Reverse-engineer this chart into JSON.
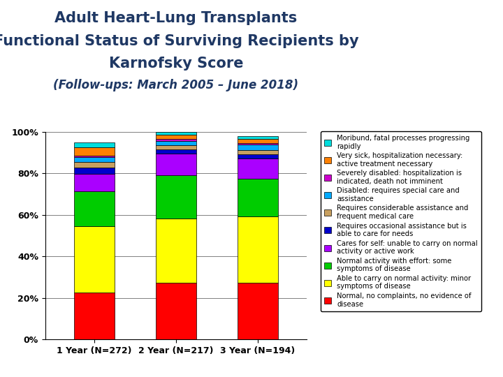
{
  "categories": [
    "1 Year (N=272)",
    "2 Year (N=217)",
    "3 Year (N=194)"
  ],
  "title_line1": "Adult Heart-Lung Transplants",
  "title_line2": "Functional Status of Surviving Recipients by",
  "title_line3": "Karnofsky Score",
  "subtitle": "(Follow-ups: March 2005 – June 2018)",
  "segments": [
    {
      "label": "Normal, no complaints, no evidence of\ndisease",
      "color": "#FF0000",
      "values": [
        22.4,
        27.2,
        27.3
      ]
    },
    {
      "label": "Able to carry on normal activity: minor\nsymptoms of disease",
      "color": "#FFFF00",
      "values": [
        32.0,
        31.0,
        32.0
      ]
    },
    {
      "label": "Normal activity with effort: some\nsymptoms of disease",
      "color": "#00CC00",
      "values": [
        17.0,
        21.0,
        18.0
      ]
    },
    {
      "label": "Cares for self: unable to carry on normal\nactivity or active work",
      "color": "#AA00FF",
      "values": [
        8.5,
        10.5,
        10.0
      ]
    },
    {
      "label": "Requires occasional assistance but is\nable to care for needs",
      "color": "#0000CC",
      "values": [
        3.0,
        2.0,
        2.0
      ]
    },
    {
      "label": "Requires considerable assistance and\nfrequent medical care",
      "color": "#C8A060",
      "values": [
        2.5,
        2.0,
        2.0
      ]
    },
    {
      "label": "Disabled: requires special care and\nassistance",
      "color": "#00AAFF",
      "values": [
        2.5,
        2.0,
        2.5
      ]
    },
    {
      "label": "Severely disabled: hospitalization is\nindicated, death not imminent",
      "color": "#CC00CC",
      "values": [
        0.6,
        0.8,
        0.7
      ]
    },
    {
      "label": "Very sick, hospitalization necessary:\nactive treatment necessary",
      "color": "#FF8000",
      "values": [
        4.0,
        2.0,
        2.0
      ]
    },
    {
      "label": "Moribund, fatal processes progressing\nrapidly",
      "color": "#00DDDD",
      "values": [
        2.5,
        1.5,
        1.5
      ]
    }
  ],
  "ylim": [
    0,
    100
  ],
  "yticks": [
    0,
    20,
    40,
    60,
    80,
    100
  ],
  "yticklabels": [
    "0%",
    "20%",
    "40%",
    "60%",
    "80%",
    "100%"
  ],
  "background_color": "#FFFFFF",
  "title_color": "#1F3864",
  "bar_width": 0.5,
  "legend_fontsize": 7.2,
  "title_fontsize": 15,
  "subtitle_fontsize": 12
}
